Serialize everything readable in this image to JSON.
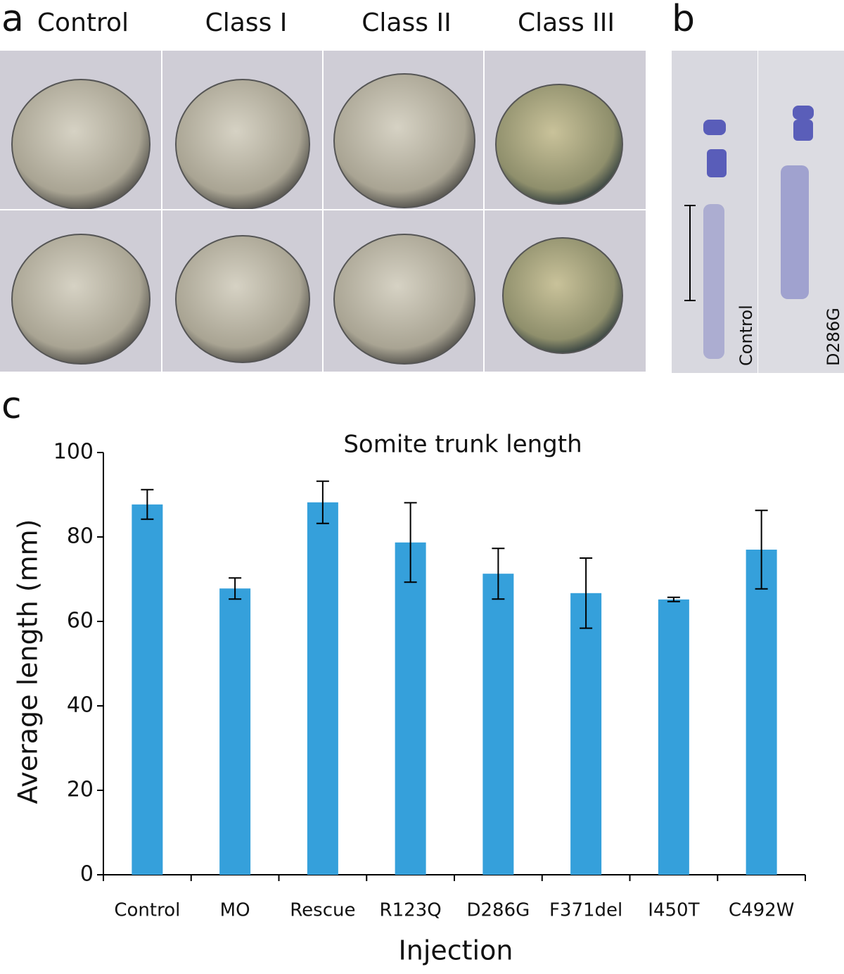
{
  "panel_a": {
    "label": "a",
    "columns": [
      "Control",
      "Class I",
      "Class II",
      "Class III"
    ]
  },
  "panel_b": {
    "label": "b",
    "lanes": [
      "Control",
      "D286G"
    ]
  },
  "panel_c": {
    "label": "c"
  },
  "chart_data": {
    "type": "bar",
    "title": "Somite trunk length",
    "x_label": "Injection",
    "y_label": "Average length (mm)",
    "categories": [
      "Control",
      "MO",
      "Rescue",
      "R123Q",
      "D286G",
      "F371del",
      "I450T",
      "C492W"
    ],
    "values": [
      87.7,
      67.8,
      88.2,
      78.7,
      71.3,
      66.7,
      65.2,
      77
    ],
    "errors": [
      3.5,
      2.5,
      5,
      9.4,
      6,
      8.3,
      0.5,
      9.3
    ],
    "color": "#35a0db",
    "ylim": [
      0,
      100
    ],
    "yticks": [
      0,
      20,
      40,
      60,
      80,
      100
    ],
    "grid": false
  }
}
